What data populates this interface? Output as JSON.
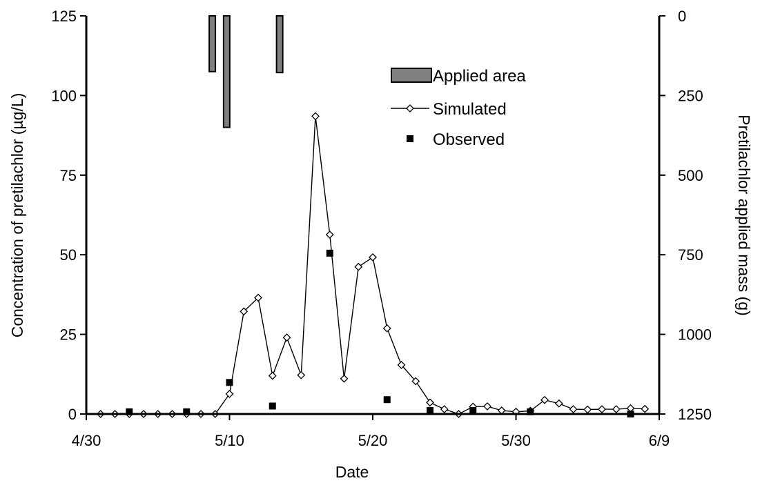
{
  "chart_data": {
    "type": "line",
    "title": "",
    "xlabel": "Date",
    "ylabel_left": "Concentration of pretilachlor (µg/L)",
    "ylabel_right": "Pretilachlor applied mass (g)",
    "xlim": [
      "4/30",
      "6/9"
    ],
    "xticks": [
      "4/30",
      "5/10",
      "5/20",
      "5/30",
      "6/9"
    ],
    "ylim_left": [
      0,
      125
    ],
    "yticks_left": [
      "0",
      "25",
      "50",
      "75",
      "100",
      "125"
    ],
    "ylim_right": [
      1250,
      0
    ],
    "right_axis_inverted": true,
    "yticks_right": [
      "1250",
      "1000",
      "750",
      "500",
      "250",
      "0"
    ],
    "grid": false,
    "legend_position": "top-right",
    "legend": [
      "Applied area",
      "Simulated",
      "Observed"
    ],
    "series": [
      {
        "name": "Applied area",
        "kind": "bar",
        "axis": "right",
        "color": "#808080",
        "points": [
          {
            "date": "5/8.8",
            "value": 175
          },
          {
            "date": "5/9.8",
            "value": 350
          },
          {
            "date": "5/13.5",
            "value": 178
          }
        ]
      },
      {
        "name": "Simulated",
        "kind": "line",
        "axis": "left",
        "marker": "open-diamond",
        "points": [
          {
            "date": "5/1",
            "value": 0
          },
          {
            "date": "5/2",
            "value": 0
          },
          {
            "date": "5/3",
            "value": 0
          },
          {
            "date": "5/4",
            "value": 0
          },
          {
            "date": "5/5",
            "value": 0
          },
          {
            "date": "5/6",
            "value": 0
          },
          {
            "date": "5/7",
            "value": 0
          },
          {
            "date": "5/8",
            "value": 0
          },
          {
            "date": "5/9",
            "value": 0
          },
          {
            "date": "5/10",
            "value": 6.3
          },
          {
            "date": "5/11",
            "value": 32.2
          },
          {
            "date": "5/12",
            "value": 36.5
          },
          {
            "date": "5/13",
            "value": 12
          },
          {
            "date": "5/14",
            "value": 24
          },
          {
            "date": "5/15",
            "value": 12.2
          },
          {
            "date": "5/16",
            "value": 93.5
          },
          {
            "date": "5/17",
            "value": 56.3
          },
          {
            "date": "5/18",
            "value": 11.1
          },
          {
            "date": "5/19",
            "value": 46.2
          },
          {
            "date": "5/20",
            "value": 49.2
          },
          {
            "date": "5/21",
            "value": 26.9
          },
          {
            "date": "5/22",
            "value": 15.4
          },
          {
            "date": "5/23",
            "value": 10.3
          },
          {
            "date": "5/24",
            "value": 3.6
          },
          {
            "date": "5/25",
            "value": 1.5
          },
          {
            "date": "5/26",
            "value": 0
          },
          {
            "date": "5/27",
            "value": 2.3
          },
          {
            "date": "5/28",
            "value": 2.4
          },
          {
            "date": "5/29",
            "value": 1.1
          },
          {
            "date": "5/30",
            "value": 0.7
          },
          {
            "date": "5/31",
            "value": 1
          },
          {
            "date": "6/1",
            "value": 4.4
          },
          {
            "date": "6/2",
            "value": 3.3
          },
          {
            "date": "6/3",
            "value": 1.5
          },
          {
            "date": "6/4",
            "value": 1.4
          },
          {
            "date": "6/5",
            "value": 1.5
          },
          {
            "date": "6/6",
            "value": 1.5
          },
          {
            "date": "6/7",
            "value": 1.8
          },
          {
            "date": "6/8",
            "value": 1.6
          }
        ]
      },
      {
        "name": "Observed",
        "kind": "scatter",
        "axis": "left",
        "marker": "filled-square",
        "points": [
          {
            "date": "5/3",
            "value": 0.7
          },
          {
            "date": "5/7",
            "value": 0.7
          },
          {
            "date": "5/10",
            "value": 9.9
          },
          {
            "date": "5/13",
            "value": 2.5
          },
          {
            "date": "5/17",
            "value": 50.5
          },
          {
            "date": "5/21",
            "value": 4.5
          },
          {
            "date": "5/24",
            "value": 1.1
          },
          {
            "date": "5/27",
            "value": 1.1
          },
          {
            "date": "5/31",
            "value": 0.7
          },
          {
            "date": "6/7",
            "value": 0
          }
        ]
      }
    ]
  }
}
